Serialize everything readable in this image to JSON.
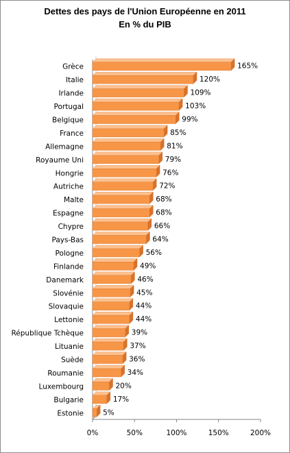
{
  "chart_data": {
    "type": "bar",
    "orientation": "horizontal",
    "title": "Dettes des pays de l'Union Européenne en 2011",
    "subtitle": "En % du PIB",
    "categories": [
      "Grèce",
      "Italie",
      "Irlande",
      "Portugal",
      "Belgique",
      "France",
      "Allemagne",
      "Royaume Uni",
      "Hongrie",
      "Autriche",
      "Malte",
      "Espagne",
      "Chypre",
      "Pays-Bas",
      "Pologne",
      "Finlande",
      "Danemark",
      "Slovénie",
      "Slovaquie",
      "Lettonie",
      "République Tchèque",
      "Lituanie",
      "Suède",
      "Roumanie",
      "Luxembourg",
      "Bulgarie",
      "Estonie"
    ],
    "values": [
      165,
      120,
      109,
      103,
      99,
      85,
      81,
      79,
      76,
      72,
      68,
      68,
      66,
      64,
      56,
      49,
      46,
      45,
      44,
      44,
      39,
      37,
      36,
      34,
      20,
      17,
      5
    ],
    "value_labels": [
      "165%",
      "120%",
      "109%",
      "103%",
      "99%",
      "85%",
      "81%",
      "79%",
      "76%",
      "72%",
      "68%",
      "68%",
      "66%",
      "64%",
      "56%",
      "49%",
      "46%",
      "45%",
      "44%",
      "44%",
      "39%",
      "37%",
      "36%",
      "34%",
      "20%",
      "17%",
      "5%"
    ],
    "xlim": [
      0,
      200
    ],
    "xticks": [
      0,
      50,
      100,
      150,
      200
    ],
    "xtick_labels": [
      "0%",
      "50%",
      "100%",
      "150%",
      "200%"
    ],
    "grid": false,
    "legend": "none",
    "colors": {
      "bar_top": "#fbc08e",
      "bar_face": "#f79646",
      "bar_side": "#d9722a",
      "axis": "#868686"
    }
  }
}
